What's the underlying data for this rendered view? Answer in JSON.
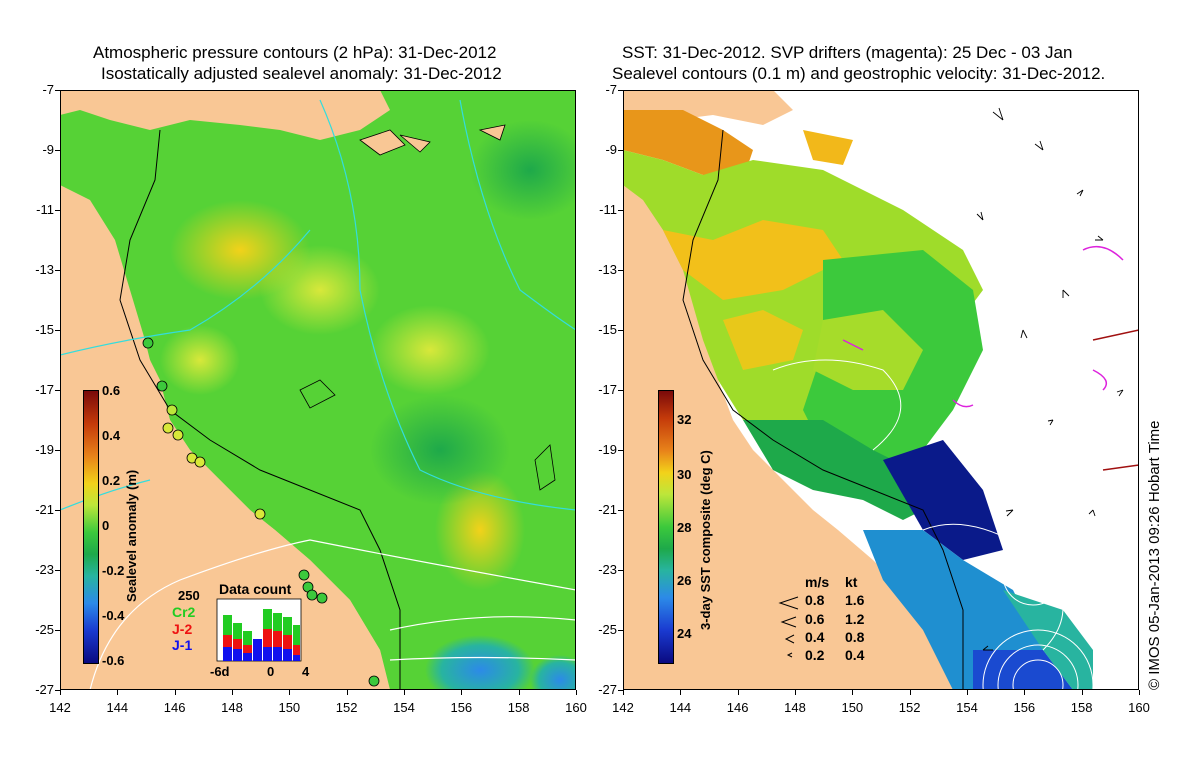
{
  "left_panel": {
    "title_line1": "Atmospheric pressure contours (2 hPa): 31-Dec-2012",
    "title_line2": "Isostatically adjusted sealevel anomaly: 31-Dec-2012",
    "colorbar": {
      "title": "Sealevel anomaly (m)",
      "ticks": [
        "0.6",
        "0.4",
        "0.2",
        "0",
        "-0.2",
        "-0.4",
        "-0.6"
      ]
    },
    "data_count": {
      "title": "Data count",
      "scale_label": "250",
      "series": [
        {
          "name": "Cr2",
          "color": "#22cc22"
        },
        {
          "name": "J-2",
          "color": "#ee1111"
        },
        {
          "name": "J-1",
          "color": "#1111ee"
        }
      ],
      "x_labels": [
        "-6d",
        "0",
        "4"
      ]
    }
  },
  "right_panel": {
    "title_line1": "SST: 31-Dec-2012. SVP drifters (magenta): 25 Dec - 03 Jan",
    "title_line2": "Sealevel contours (0.1 m) and geostrophic velocity: 31-Dec-2012.",
    "colorbar": {
      "title": "3-day SST composite (deg C)",
      "ticks": [
        "32",
        "30",
        "28",
        "26",
        "24"
      ]
    },
    "velocity_legend": {
      "header_ms": "m/s",
      "header_kt": "kt",
      "rows": [
        {
          "ms": "0.8",
          "kt": "1.6"
        },
        {
          "ms": "0.6",
          "kt": "1.2"
        },
        {
          "ms": "0.4",
          "kt": "0.8"
        },
        {
          "ms": "0.2",
          "kt": "0.4"
        }
      ]
    }
  },
  "axes": {
    "y_labels": [
      "-7",
      "-9",
      "-11",
      "-13",
      "-15",
      "-17",
      "-19",
      "-21",
      "-23",
      "-25",
      "-27"
    ],
    "x_labels": [
      "142",
      "144",
      "146",
      "148",
      "150",
      "152",
      "154",
      "156",
      "158",
      "160"
    ]
  },
  "credit": "© IMOS 05-Jan-2013 09:26 Hobart Time",
  "colors": {
    "land": "#f9c795",
    "sea_green": "#3cc93c",
    "contour_cyan": "#33dddd",
    "drifter_magenta": "#dd22dd"
  }
}
